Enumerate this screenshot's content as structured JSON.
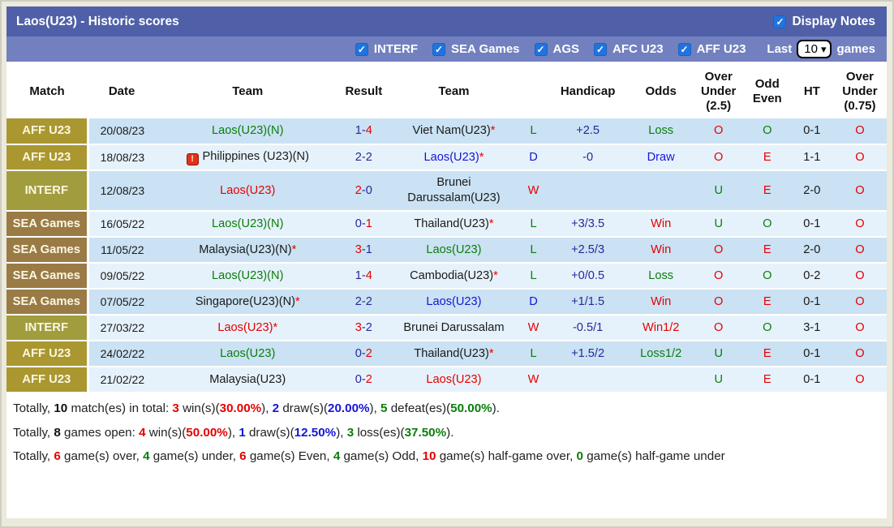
{
  "title_bar": {
    "title": "Laos(U23) - Historic scores",
    "display_notes_label": "Display Notes"
  },
  "filter_bar": {
    "filters": [
      {
        "label": "INTERF"
      },
      {
        "label": "SEA Games"
      },
      {
        "label": "AGS"
      },
      {
        "label": "AFC U23"
      },
      {
        "label": "AFF U23"
      }
    ],
    "last_label": "Last",
    "games_count": "10",
    "games_label": "games"
  },
  "colors": {
    "bar_top": "#5060a8",
    "bar_filters": "#7280bf",
    "checkbox_blue": "#1f74e0",
    "row_dark": "#cae2f3",
    "row_light": "#e6f2fb",
    "match_aff_u23": "#aa9730",
    "match_interf": "#a19d3e",
    "match_sea_games": "#9a7b46",
    "win_red": "#e60000",
    "draw_blue": "#1515d6",
    "loss_green": "#0b7d0b",
    "score_navy": "#28289b"
  },
  "table": {
    "columns": [
      "Match",
      "Date",
      "Team",
      "Result",
      "Team",
      "",
      "Handicap",
      "Odds",
      "Over Under (2.5)",
      "Odd Even",
      "HT",
      "Over Under (0.75)"
    ],
    "score_sep": "-",
    "rows": [
      {
        "match": "AFF U23",
        "match_type": "aff",
        "date": "20/08/23",
        "home": {
          "name": "Laos(U23)(N)",
          "color": "green",
          "star": "",
          "icon": ""
        },
        "score": {
          "home": "1",
          "home_color": "navy",
          "away": "4",
          "away_color": "red"
        },
        "away": {
          "name": "Viet Nam(U23)",
          "color": "black",
          "star": "*"
        },
        "wld": {
          "t": "L",
          "c": "green"
        },
        "handicap": "+2.5",
        "odds": {
          "t": "Loss",
          "c": "green"
        },
        "ou25": {
          "t": "O",
          "c": "red"
        },
        "oddeven": {
          "t": "O",
          "c": "green"
        },
        "ht": "0-1",
        "ou075": {
          "t": "O",
          "c": "red"
        }
      },
      {
        "match": "AFF U23",
        "match_type": "aff",
        "date": "18/08/23",
        "home": {
          "name": "Philippines (U23)(N)",
          "color": "black",
          "star": "",
          "icon": "red-card"
        },
        "score": {
          "home": "2",
          "home_color": "navy",
          "away": "2",
          "away_color": "navy"
        },
        "away": {
          "name": "Laos(U23)",
          "color": "blue",
          "star": "*"
        },
        "wld": {
          "t": "D",
          "c": "blue"
        },
        "handicap": "-0",
        "odds": {
          "t": "Draw",
          "c": "blue"
        },
        "ou25": {
          "t": "O",
          "c": "red"
        },
        "oddeven": {
          "t": "E",
          "c": "red"
        },
        "ht": "1-1",
        "ou075": {
          "t": "O",
          "c": "red"
        }
      },
      {
        "match": "INTERF",
        "match_type": "interf",
        "date": "12/08/23",
        "home": {
          "name": "Laos(U23)",
          "color": "red",
          "star": "",
          "icon": ""
        },
        "score": {
          "home": "2",
          "home_color": "red",
          "away": "0",
          "away_color": "navy"
        },
        "away": {
          "name": "Brunei Darussalam(U23)",
          "color": "black",
          "star": ""
        },
        "wld": {
          "t": "W",
          "c": "red"
        },
        "handicap": "",
        "odds": {
          "t": "",
          "c": "black"
        },
        "ou25": {
          "t": "U",
          "c": "green"
        },
        "oddeven": {
          "t": "E",
          "c": "red"
        },
        "ht": "2-0",
        "ou075": {
          "t": "O",
          "c": "red"
        }
      },
      {
        "match": "SEA Games",
        "match_type": "sea",
        "date": "16/05/22",
        "home": {
          "name": "Laos(U23)(N)",
          "color": "green",
          "star": "",
          "icon": ""
        },
        "score": {
          "home": "0",
          "home_color": "navy",
          "away": "1",
          "away_color": "red"
        },
        "away": {
          "name": "Thailand(U23)",
          "color": "black",
          "star": "*"
        },
        "wld": {
          "t": "L",
          "c": "green"
        },
        "handicap": "+3/3.5",
        "odds": {
          "t": "Win",
          "c": "red"
        },
        "ou25": {
          "t": "U",
          "c": "green"
        },
        "oddeven": {
          "t": "O",
          "c": "green"
        },
        "ht": "0-1",
        "ou075": {
          "t": "O",
          "c": "red"
        }
      },
      {
        "match": "SEA Games",
        "match_type": "sea",
        "date": "11/05/22",
        "home": {
          "name": "Malaysia(U23)(N)",
          "color": "black",
          "star": "*",
          "icon": ""
        },
        "score": {
          "home": "3",
          "home_color": "red",
          "away": "1",
          "away_color": "navy"
        },
        "away": {
          "name": "Laos(U23)",
          "color": "green",
          "star": ""
        },
        "wld": {
          "t": "L",
          "c": "green"
        },
        "handicap": "+2.5/3",
        "odds": {
          "t": "Win",
          "c": "red"
        },
        "ou25": {
          "t": "O",
          "c": "red"
        },
        "oddeven": {
          "t": "E",
          "c": "red"
        },
        "ht": "2-0",
        "ou075": {
          "t": "O",
          "c": "red"
        }
      },
      {
        "match": "SEA Games",
        "match_type": "sea",
        "date": "09/05/22",
        "home": {
          "name": "Laos(U23)(N)",
          "color": "green",
          "star": "",
          "icon": ""
        },
        "score": {
          "home": "1",
          "home_color": "navy",
          "away": "4",
          "away_color": "red"
        },
        "away": {
          "name": "Cambodia(U23)",
          "color": "black",
          "star": "*"
        },
        "wld": {
          "t": "L",
          "c": "green"
        },
        "handicap": "+0/0.5",
        "odds": {
          "t": "Loss",
          "c": "green"
        },
        "ou25": {
          "t": "O",
          "c": "red"
        },
        "oddeven": {
          "t": "O",
          "c": "green"
        },
        "ht": "0-2",
        "ou075": {
          "t": "O",
          "c": "red"
        }
      },
      {
        "match": "SEA Games",
        "match_type": "sea",
        "date": "07/05/22",
        "home": {
          "name": "Singapore(U23)(N)",
          "color": "black",
          "star": "*",
          "icon": ""
        },
        "score": {
          "home": "2",
          "home_color": "navy",
          "away": "2",
          "away_color": "navy"
        },
        "away": {
          "name": "Laos(U23)",
          "color": "blue",
          "star": ""
        },
        "wld": {
          "t": "D",
          "c": "blue"
        },
        "handicap": "+1/1.5",
        "odds": {
          "t": "Win",
          "c": "red"
        },
        "ou25": {
          "t": "O",
          "c": "red"
        },
        "oddeven": {
          "t": "E",
          "c": "red"
        },
        "ht": "0-1",
        "ou075": {
          "t": "O",
          "c": "red"
        }
      },
      {
        "match": "INTERF",
        "match_type": "interf",
        "date": "27/03/22",
        "home": {
          "name": "Laos(U23)",
          "color": "red",
          "star": "*",
          "icon": ""
        },
        "score": {
          "home": "3",
          "home_color": "red",
          "away": "2",
          "away_color": "navy"
        },
        "away": {
          "name": "Brunei Darussalam",
          "color": "black",
          "star": ""
        },
        "wld": {
          "t": "W",
          "c": "red"
        },
        "handicap": "-0.5/1",
        "odds": {
          "t": "Win1/2",
          "c": "red"
        },
        "ou25": {
          "t": "O",
          "c": "red"
        },
        "oddeven": {
          "t": "O",
          "c": "green"
        },
        "ht": "3-1",
        "ou075": {
          "t": "O",
          "c": "red"
        }
      },
      {
        "match": "AFF U23",
        "match_type": "aff",
        "date": "24/02/22",
        "home": {
          "name": "Laos(U23)",
          "color": "green",
          "star": "",
          "icon": ""
        },
        "score": {
          "home": "0",
          "home_color": "navy",
          "away": "2",
          "away_color": "red"
        },
        "away": {
          "name": "Thailand(U23)",
          "color": "black",
          "star": "*"
        },
        "wld": {
          "t": "L",
          "c": "green"
        },
        "handicap": "+1.5/2",
        "odds": {
          "t": "Loss1/2",
          "c": "green"
        },
        "ou25": {
          "t": "U",
          "c": "green"
        },
        "oddeven": {
          "t": "E",
          "c": "red"
        },
        "ht": "0-1",
        "ou075": {
          "t": "O",
          "c": "red"
        }
      },
      {
        "match": "AFF U23",
        "match_type": "aff",
        "date": "21/02/22",
        "home": {
          "name": "Malaysia(U23)",
          "color": "black",
          "star": "",
          "icon": ""
        },
        "score": {
          "home": "0",
          "home_color": "navy",
          "away": "2",
          "away_color": "red"
        },
        "away": {
          "name": "Laos(U23)",
          "color": "red",
          "star": ""
        },
        "wld": {
          "t": "W",
          "c": "red"
        },
        "handicap": "",
        "odds": {
          "t": "",
          "c": "black"
        },
        "ou25": {
          "t": "U",
          "c": "green"
        },
        "oddeven": {
          "t": "E",
          "c": "red"
        },
        "ht": "0-1",
        "ou075": {
          "t": "O",
          "c": "red"
        }
      }
    ]
  },
  "summary": {
    "line1": [
      {
        "t": "Totally, ",
        "c": "k"
      },
      {
        "t": "10",
        "c": "kb"
      },
      {
        "t": " match(es) in total: ",
        "c": "k"
      },
      {
        "t": "3",
        "c": "rb"
      },
      {
        "t": " win(s)(",
        "c": "k"
      },
      {
        "t": "30.00%",
        "c": "rb"
      },
      {
        "t": "), ",
        "c": "k"
      },
      {
        "t": "2",
        "c": "bb"
      },
      {
        "t": " draw(s)(",
        "c": "k"
      },
      {
        "t": "20.00%",
        "c": "bb"
      },
      {
        "t": "), ",
        "c": "k"
      },
      {
        "t": "5",
        "c": "gb"
      },
      {
        "t": " defeat(es)(",
        "c": "k"
      },
      {
        "t": "50.00%",
        "c": "gb"
      },
      {
        "t": ").",
        "c": "k"
      }
    ],
    "line2": [
      {
        "t": "Totally, ",
        "c": "k"
      },
      {
        "t": "8",
        "c": "kb"
      },
      {
        "t": " games open: ",
        "c": "k"
      },
      {
        "t": "4",
        "c": "rb"
      },
      {
        "t": " win(s)(",
        "c": "k"
      },
      {
        "t": "50.00%",
        "c": "rb"
      },
      {
        "t": "), ",
        "c": "k"
      },
      {
        "t": "1",
        "c": "bb"
      },
      {
        "t": " draw(s)(",
        "c": "k"
      },
      {
        "t": "12.50%",
        "c": "bb"
      },
      {
        "t": "), ",
        "c": "k"
      },
      {
        "t": "3",
        "c": "gb"
      },
      {
        "t": " loss(es)(",
        "c": "k"
      },
      {
        "t": "37.50%",
        "c": "gb"
      },
      {
        "t": ").",
        "c": "k"
      }
    ],
    "line3": [
      {
        "t": "Totally, ",
        "c": "k"
      },
      {
        "t": "6",
        "c": "rb"
      },
      {
        "t": " game(s) over, ",
        "c": "k"
      },
      {
        "t": "4",
        "c": "gb"
      },
      {
        "t": " game(s) under, ",
        "c": "k"
      },
      {
        "t": "6",
        "c": "rb"
      },
      {
        "t": " game(s) Even, ",
        "c": "k"
      },
      {
        "t": "4",
        "c": "gb"
      },
      {
        "t": " game(s) Odd, ",
        "c": "k"
      },
      {
        "t": "10",
        "c": "rb"
      },
      {
        "t": " game(s) half-game over, ",
        "c": "k"
      },
      {
        "t": "0",
        "c": "gb"
      },
      {
        "t": " game(s) half-game under",
        "c": "k"
      }
    ]
  }
}
